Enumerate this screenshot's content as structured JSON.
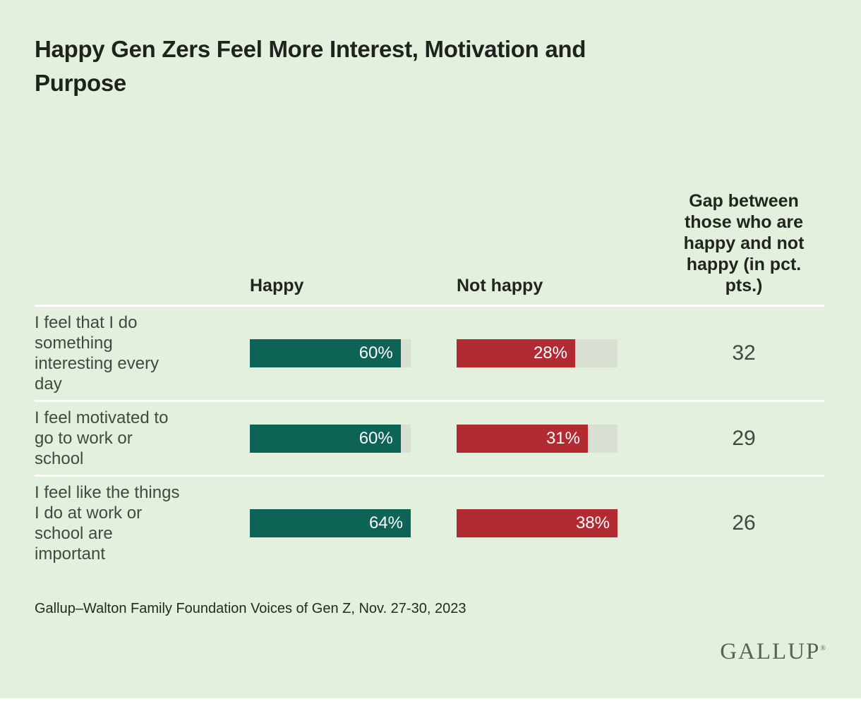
{
  "title_lines": [
    "Happy Gen Zers Feel More Interest, Motivation and",
    "Purpose"
  ],
  "headers": {
    "happy": "Happy",
    "not_happy": "Not happy",
    "gap": "Gap between\nthose who are\nhappy and not\nhappy (in pct.\npts.)"
  },
  "rows": [
    {
      "label": "I feel that I do\nsomething\ninteresting every\nday",
      "happy_label": "60%",
      "not_happy_label": "28%",
      "gap": "32"
    },
    {
      "label": "I feel motivated to\ngo to work or\nschool",
      "happy_label": "60%",
      "not_happy_label": "31%",
      "gap": "29"
    },
    {
      "label": "I feel like the things\nI do at work or\nschool are\nimportant",
      "happy_label": "64%",
      "not_happy_label": "38%",
      "gap": "26"
    }
  ],
  "source": "Gallup–Walton Family Foundation Voices of Gen Z, Nov. 27-30, 2023",
  "logo": {
    "text": "GALLUP",
    "mark": "®"
  },
  "colors": {
    "bg": "#e3f0de",
    "track": "#d7e0d2",
    "happy_bar": "#0d6356",
    "not_happy_bar": "#b22a32",
    "title": "#1d241d",
    "header_text": "#20261f",
    "label_text": "#3f4a43",
    "source_text": "#232a23",
    "logo": "#5b6158",
    "separator": "#ffffff"
  },
  "chart_data": {
    "type": "bar",
    "orientation": "horizontal",
    "title": "Happy Gen Zers Feel More Interest, Motivation and Purpose",
    "categories": [
      "I feel that I do something interesting every day",
      "I feel motivated to go to work or school",
      "I feel like the things I do at work or school are important"
    ],
    "series": [
      {
        "name": "Happy",
        "values": [
          60,
          60,
          64
        ],
        "color": "#0d6356"
      },
      {
        "name": "Not happy",
        "values": [
          28,
          31,
          38
        ],
        "color": "#b22a32"
      }
    ],
    "gap_column": {
      "label": "Gap between those who are happy and not happy (in pct. pts.)",
      "values": [
        32,
        29,
        26
      ]
    },
    "value_format": "percent",
    "bar_scaling": "each column's bars are scaled so the column maximum fills the gray track",
    "legend_position": "column headers",
    "grid": false,
    "source": "Gallup–Walton Family Foundation Voices of Gen Z, Nov. 27-30, 2023"
  }
}
